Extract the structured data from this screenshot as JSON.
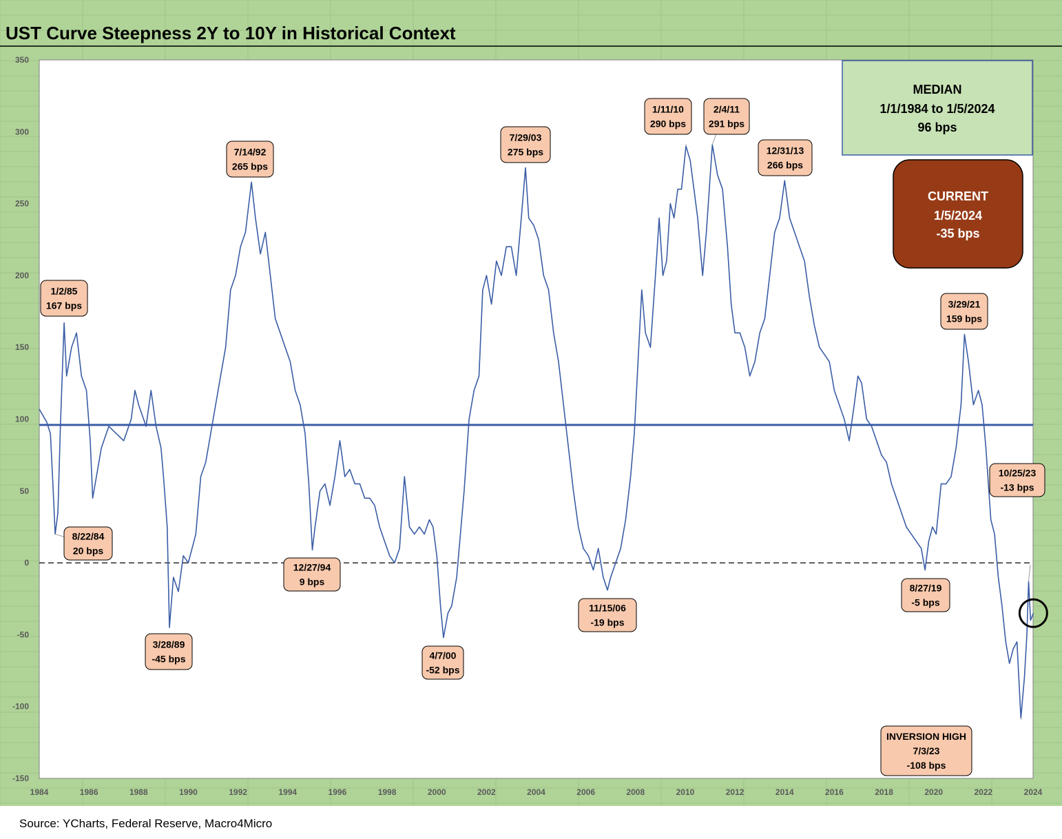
{
  "chart_data": {
    "type": "line",
    "title": "UST Curve Steepness 2Y to 10Y in Historical Context",
    "source": "Source: YCharts, Federal Reserve, Macro4Micro",
    "xlim": [
      1984,
      2024
    ],
    "ylim": [
      -150,
      350
    ],
    "x_ticks": [
      "1984",
      "1986",
      "1988",
      "1990",
      "1992",
      "1994",
      "1996",
      "1998",
      "2000",
      "2002",
      "2004",
      "2006",
      "2008",
      "2010",
      "2012",
      "2014",
      "2016",
      "2018",
      "2020",
      "2022",
      "2024"
    ],
    "y_ticks": [
      "350",
      "300",
      "250",
      "200",
      "150",
      "100",
      "50",
      "0",
      "-50",
      "-100",
      "-150"
    ],
    "median_line": 96,
    "zero_line": 0,
    "series": [
      {
        "color": "#3a5da6",
        "points": [
          [
            1984.0,
            107
          ],
          [
            1984.3,
            98
          ],
          [
            1984.45,
            90
          ],
          [
            1984.55,
            55
          ],
          [
            1984.64,
            20
          ],
          [
            1984.75,
            35
          ],
          [
            1984.85,
            95
          ],
          [
            1985.0,
            167
          ],
          [
            1985.1,
            130
          ],
          [
            1985.3,
            150
          ],
          [
            1985.5,
            160
          ],
          [
            1985.7,
            130
          ],
          [
            1985.9,
            120
          ],
          [
            1986.05,
            85
          ],
          [
            1986.15,
            45
          ],
          [
            1986.3,
            60
          ],
          [
            1986.5,
            80
          ],
          [
            1986.8,
            95
          ],
          [
            1987.1,
            90
          ],
          [
            1987.4,
            85
          ],
          [
            1987.7,
            100
          ],
          [
            1987.85,
            120
          ],
          [
            1988.0,
            110
          ],
          [
            1988.3,
            95
          ],
          [
            1988.5,
            120
          ],
          [
            1988.7,
            95
          ],
          [
            1988.9,
            80
          ],
          [
            1989.0,
            60
          ],
          [
            1989.15,
            25
          ],
          [
            1989.24,
            -45
          ],
          [
            1989.4,
            -10
          ],
          [
            1989.6,
            -20
          ],
          [
            1989.8,
            5
          ],
          [
            1990.0,
            0
          ],
          [
            1990.3,
            20
          ],
          [
            1990.5,
            60
          ],
          [
            1990.7,
            70
          ],
          [
            1990.9,
            90
          ],
          [
            1991.1,
            110
          ],
          [
            1991.3,
            130
          ],
          [
            1991.5,
            150
          ],
          [
            1991.7,
            190
          ],
          [
            1991.9,
            200
          ],
          [
            1992.1,
            220
          ],
          [
            1992.3,
            230
          ],
          [
            1992.54,
            265
          ],
          [
            1992.7,
            240
          ],
          [
            1992.9,
            215
          ],
          [
            1993.1,
            230
          ],
          [
            1993.3,
            200
          ],
          [
            1993.5,
            170
          ],
          [
            1993.7,
            160
          ],
          [
            1993.9,
            150
          ],
          [
            1994.1,
            140
          ],
          [
            1994.3,
            120
          ],
          [
            1994.5,
            110
          ],
          [
            1994.7,
            90
          ],
          [
            1994.85,
            55
          ],
          [
            1994.99,
            9
          ],
          [
            1995.1,
            25
          ],
          [
            1995.3,
            50
          ],
          [
            1995.5,
            55
          ],
          [
            1995.7,
            40
          ],
          [
            1995.9,
            60
          ],
          [
            1996.1,
            85
          ],
          [
            1996.3,
            60
          ],
          [
            1996.5,
            65
          ],
          [
            1996.7,
            55
          ],
          [
            1996.9,
            55
          ],
          [
            1997.1,
            45
          ],
          [
            1997.3,
            45
          ],
          [
            1997.5,
            40
          ],
          [
            1997.7,
            25
          ],
          [
            1997.9,
            15
          ],
          [
            1998.1,
            5
          ],
          [
            1998.3,
            0
          ],
          [
            1998.5,
            10
          ],
          [
            1998.7,
            60
          ],
          [
            1998.9,
            25
          ],
          [
            1999.1,
            20
          ],
          [
            1999.3,
            25
          ],
          [
            1999.5,
            20
          ],
          [
            1999.7,
            30
          ],
          [
            1999.85,
            25
          ],
          [
            2000.0,
            5
          ],
          [
            2000.15,
            -30
          ],
          [
            2000.27,
            -52
          ],
          [
            2000.45,
            -35
          ],
          [
            2000.6,
            -30
          ],
          [
            2000.8,
            -10
          ],
          [
            2000.95,
            20
          ],
          [
            2001.1,
            50
          ],
          [
            2001.3,
            100
          ],
          [
            2001.5,
            120
          ],
          [
            2001.7,
            130
          ],
          [
            2001.85,
            190
          ],
          [
            2002.0,
            200
          ],
          [
            2002.2,
            180
          ],
          [
            2002.4,
            210
          ],
          [
            2002.6,
            200
          ],
          [
            2002.8,
            220
          ],
          [
            2003.0,
            220
          ],
          [
            2003.2,
            200
          ],
          [
            2003.4,
            240
          ],
          [
            2003.57,
            275
          ],
          [
            2003.7,
            240
          ],
          [
            2003.9,
            235
          ],
          [
            2004.1,
            225
          ],
          [
            2004.3,
            200
          ],
          [
            2004.5,
            190
          ],
          [
            2004.7,
            160
          ],
          [
            2004.9,
            140
          ],
          [
            2005.1,
            110
          ],
          [
            2005.3,
            80
          ],
          [
            2005.5,
            50
          ],
          [
            2005.7,
            25
          ],
          [
            2005.9,
            10
          ],
          [
            2006.1,
            5
          ],
          [
            2006.3,
            -5
          ],
          [
            2006.5,
            10
          ],
          [
            2006.7,
            -10
          ],
          [
            2006.87,
            -19
          ],
          [
            2007.0,
            -10
          ],
          [
            2007.2,
            0
          ],
          [
            2007.4,
            10
          ],
          [
            2007.6,
            30
          ],
          [
            2007.8,
            60
          ],
          [
            2007.95,
            90
          ],
          [
            2008.1,
            140
          ],
          [
            2008.25,
            190
          ],
          [
            2008.4,
            160
          ],
          [
            2008.6,
            150
          ],
          [
            2008.8,
            200
          ],
          [
            2008.95,
            240
          ],
          [
            2009.1,
            200
          ],
          [
            2009.25,
            210
          ],
          [
            2009.4,
            250
          ],
          [
            2009.55,
            240
          ],
          [
            2009.7,
            260
          ],
          [
            2009.85,
            260
          ],
          [
            2010.03,
            290
          ],
          [
            2010.2,
            280
          ],
          [
            2010.35,
            260
          ],
          [
            2010.5,
            240
          ],
          [
            2010.7,
            200
          ],
          [
            2010.85,
            230
          ],
          [
            2011.09,
            291
          ],
          [
            2011.3,
            270
          ],
          [
            2011.5,
            260
          ],
          [
            2011.7,
            220
          ],
          [
            2011.85,
            180
          ],
          [
            2012.0,
            160
          ],
          [
            2012.2,
            160
          ],
          [
            2012.4,
            150
          ],
          [
            2012.6,
            130
          ],
          [
            2012.8,
            140
          ],
          [
            2013.0,
            160
          ],
          [
            2013.2,
            170
          ],
          [
            2013.4,
            200
          ],
          [
            2013.6,
            230
          ],
          [
            2013.8,
            240
          ],
          [
            2014.0,
            266
          ],
          [
            2014.2,
            240
          ],
          [
            2014.4,
            230
          ],
          [
            2014.6,
            220
          ],
          [
            2014.8,
            210
          ],
          [
            2015.0,
            185
          ],
          [
            2015.2,
            165
          ],
          [
            2015.4,
            150
          ],
          [
            2015.6,
            145
          ],
          [
            2015.8,
            140
          ],
          [
            2016.0,
            120
          ],
          [
            2016.2,
            110
          ],
          [
            2016.4,
            100
          ],
          [
            2016.6,
            85
          ],
          [
            2016.8,
            110
          ],
          [
            2016.95,
            130
          ],
          [
            2017.1,
            125
          ],
          [
            2017.3,
            100
          ],
          [
            2017.5,
            95
          ],
          [
            2017.7,
            85
          ],
          [
            2017.9,
            75
          ],
          [
            2018.1,
            70
          ],
          [
            2018.3,
            55
          ],
          [
            2018.5,
            45
          ],
          [
            2018.7,
            35
          ],
          [
            2018.9,
            25
          ],
          [
            2019.1,
            20
          ],
          [
            2019.3,
            15
          ],
          [
            2019.5,
            10
          ],
          [
            2019.65,
            -5
          ],
          [
            2019.8,
            15
          ],
          [
            2019.95,
            25
          ],
          [
            2020.1,
            20
          ],
          [
            2020.3,
            55
          ],
          [
            2020.5,
            55
          ],
          [
            2020.7,
            60
          ],
          [
            2020.9,
            80
          ],
          [
            2021.1,
            110
          ],
          [
            2021.24,
            159
          ],
          [
            2021.4,
            140
          ],
          [
            2021.6,
            110
          ],
          [
            2021.8,
            120
          ],
          [
            2021.95,
            110
          ],
          [
            2022.1,
            80
          ],
          [
            2022.3,
            30
          ],
          [
            2022.45,
            20
          ],
          [
            2022.6,
            -10
          ],
          [
            2022.75,
            -30
          ],
          [
            2022.9,
            -55
          ],
          [
            2023.05,
            -70
          ],
          [
            2023.2,
            -60
          ],
          [
            2023.35,
            -55
          ],
          [
            2023.51,
            -108
          ],
          [
            2023.65,
            -80
          ],
          [
            2023.75,
            -50
          ],
          [
            2023.82,
            -13
          ],
          [
            2023.9,
            -40
          ],
          [
            2024.01,
            -35
          ]
        ]
      }
    ],
    "annotations": [
      {
        "label": "1/2/85",
        "value": "167 bps",
        "x": 1985.0,
        "y": 167
      },
      {
        "label": "8/22/84",
        "value": "20 bps",
        "x": 1984.64,
        "y": 20
      },
      {
        "label": "3/28/89",
        "value": "-45 bps",
        "x": 1989.24,
        "y": -45
      },
      {
        "label": "7/14/92",
        "value": "265 bps",
        "x": 1992.54,
        "y": 265
      },
      {
        "label": "12/27/94",
        "value": "9 bps",
        "x": 1994.99,
        "y": 9
      },
      {
        "label": "4/7/00",
        "value": "-52 bps",
        "x": 2000.27,
        "y": -52
      },
      {
        "label": "7/29/03",
        "value": "275 bps",
        "x": 2003.57,
        "y": 275
      },
      {
        "label": "11/15/06",
        "value": "-19 bps",
        "x": 2006.87,
        "y": -19
      },
      {
        "label": "1/11/10",
        "value": "290 bps",
        "x": 2010.03,
        "y": 290
      },
      {
        "label": "2/4/11",
        "value": "291 bps",
        "x": 2011.09,
        "y": 291
      },
      {
        "label": "12/31/13",
        "value": "266 bps",
        "x": 2014.0,
        "y": 266
      },
      {
        "label": "8/27/19",
        "value": "-5 bps",
        "x": 2019.65,
        "y": -5
      },
      {
        "label": "3/29/21",
        "value": "159 bps",
        "x": 2021.24,
        "y": 159
      },
      {
        "label": "10/25/23",
        "value": "-13 bps",
        "x": 2023.82,
        "y": -13
      },
      {
        "label": "INVERSION HIGH",
        "label2": "7/3/23",
        "value": "-108 bps",
        "x": 2023.51,
        "y": -108
      }
    ],
    "median_box": {
      "line1": "MEDIAN",
      "line2": "1/1/1984 to 1/5/2024",
      "line3": "96 bps"
    },
    "current_box": {
      "line1": "CURRENT",
      "line2": "1/5/2024",
      "line3": "-35 bps"
    },
    "colors": {
      "background": "#b0d498",
      "line": "#3a5da6",
      "callout_fill": "#f8c9ad",
      "median_box_fill": "#c7e2b5",
      "current_box_fill": "#973b17"
    }
  }
}
